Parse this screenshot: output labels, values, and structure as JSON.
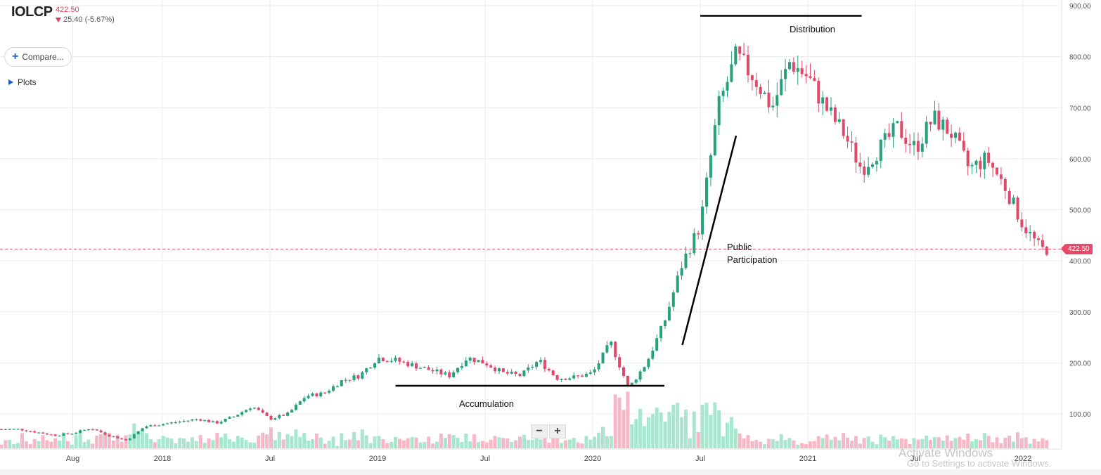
{
  "header": {
    "ticker": "IOLCP",
    "price": "422.50",
    "change": "25.40 (-5.67%)"
  },
  "controls": {
    "compare_label": "Compare...",
    "plots_label": "Plots",
    "zoom_out": "−",
    "zoom_in": "+"
  },
  "price_badge": "422.50",
  "watermark": {
    "line1": "Activate Windows",
    "line2": "Go to Settings to activate Windows."
  },
  "annotations": {
    "distribution": "Distribution",
    "accumulation": "Accumulation",
    "public_line1": "Public",
    "public_line2": "Participation"
  },
  "colors": {
    "up": "#26a17b",
    "down": "#e04a6a",
    "volume_up": "#a8e6cf",
    "volume_down": "#f6b8c6",
    "grid": "#ececec",
    "price_line": "#e8496a"
  },
  "chart_data": {
    "type": "candlestick",
    "title": "",
    "xlabel": "",
    "ylabel": "",
    "ylim": [
      0,
      900
    ],
    "y_ticks": [
      "100.00",
      "200.00",
      "300.00",
      "400.00",
      "500.00",
      "600.00",
      "700.00",
      "800.00",
      "900.00"
    ],
    "x_ticks": [
      "Aug",
      "2018",
      "Jul",
      "2019",
      "Jul",
      "2020",
      "Jul",
      "2021",
      "Jul",
      "2022"
    ],
    "last_price": 422.5,
    "trend_lines": [
      {
        "label": "Accumulation",
        "from": [
          "2019-02",
          155
        ],
        "to": [
          "2020-05",
          155
        ]
      },
      {
        "label": "Public Participation",
        "from": [
          "2020-06",
          235
        ],
        "to": [
          "2020-09",
          645
        ]
      },
      {
        "label": "Distribution",
        "from": [
          "2020-07",
          880
        ],
        "to": [
          "2021-04",
          880
        ]
      }
    ],
    "close_path": [
      [
        "2017-05",
        70
      ],
      [
        "2017-07",
        58
      ],
      [
        "2017-08",
        62
      ],
      [
        "2017-09",
        72
      ],
      [
        "2017-10",
        58
      ],
      [
        "2017-11",
        48
      ],
      [
        "2017-12",
        75
      ],
      [
        "2018-01",
        80
      ],
      [
        "2018-02",
        85
      ],
      [
        "2018-03",
        90
      ],
      [
        "2018-04",
        82
      ],
      [
        "2018-05",
        95
      ],
      [
        "2018-06",
        115
      ],
      [
        "2018-07",
        90
      ],
      [
        "2018-08",
        100
      ],
      [
        "2018-09",
        135
      ],
      [
        "2018-10",
        140
      ],
      [
        "2018-11",
        165
      ],
      [
        "2018-12",
        175
      ],
      [
        "2019-01",
        210
      ],
      [
        "2019-02",
        205
      ],
      [
        "2019-03",
        195
      ],
      [
        "2019-04",
        185
      ],
      [
        "2019-05",
        175
      ],
      [
        "2019-06",
        210
      ],
      [
        "2019-07",
        200
      ],
      [
        "2019-08",
        180
      ],
      [
        "2019-09",
        175
      ],
      [
        "2019-10",
        205
      ],
      [
        "2019-11",
        170
      ],
      [
        "2019-12",
        172
      ],
      [
        "2020-01",
        180
      ],
      [
        "2020-02",
        240
      ],
      [
        "2020-03",
        150
      ],
      [
        "2020-04",
        200
      ],
      [
        "2020-05",
        280
      ],
      [
        "2020-06",
        395
      ],
      [
        "2020-07",
        470
      ],
      [
        "2020-08",
        700
      ],
      [
        "2020-09",
        800
      ],
      [
        "2020-10",
        760
      ],
      [
        "2020-11",
        700
      ],
      [
        "2020-12",
        790
      ],
      [
        "2021-01",
        760
      ],
      [
        "2021-02",
        700
      ],
      [
        "2021-03",
        650
      ],
      [
        "2021-04",
        580
      ],
      [
        "2021-05",
        620
      ],
      [
        "2021-06",
        660
      ],
      [
        "2021-07",
        620
      ],
      [
        "2021-08",
        680
      ],
      [
        "2021-09",
        650
      ],
      [
        "2021-10",
        580
      ],
      [
        "2021-11",
        600
      ],
      [
        "2021-12",
        545
      ],
      [
        "2022-01",
        470
      ],
      [
        "2022-02",
        422.5
      ]
    ]
  }
}
